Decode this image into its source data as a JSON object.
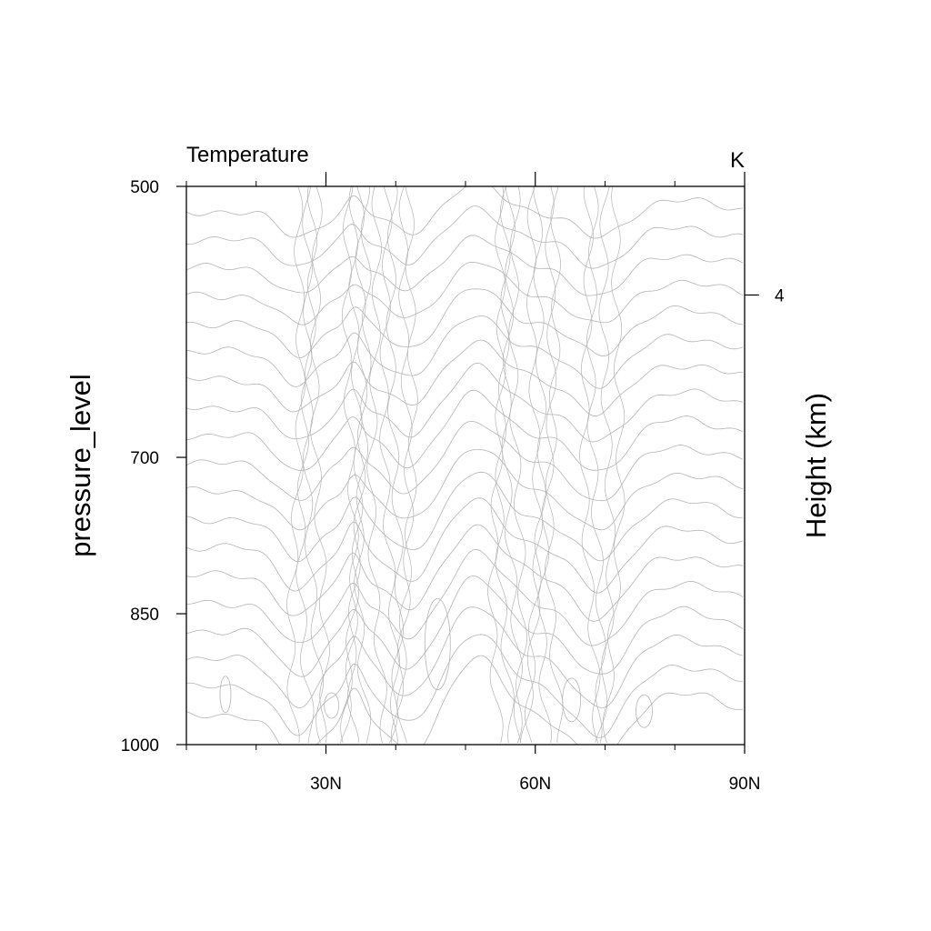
{
  "chart_data": {
    "type": "contour",
    "title": "Temperature",
    "units": "K",
    "xlabel": "",
    "ylabel": "pressure_level",
    "ylabel_right": "Height (km)",
    "x_ticks": [
      {
        "value": 30,
        "label": "30N"
      },
      {
        "value": 60,
        "label": "60N"
      },
      {
        "value": 90,
        "label": "90N"
      }
    ],
    "x_minor_ticks": [
      10,
      20,
      40,
      50,
      70,
      80
    ],
    "y_ticks": [
      {
        "value": 500,
        "label": "500"
      },
      {
        "value": 700,
        "label": "700"
      },
      {
        "value": 850,
        "label": "850"
      },
      {
        "value": 1000,
        "label": "1000"
      }
    ],
    "y_right_ticks": [
      {
        "value": 4,
        "label": "4"
      }
    ],
    "xlim": [
      10,
      90
    ],
    "ylim": [
      1000,
      500
    ],
    "y_scale": "log",
    "contour_color": "#b4b4b4"
  }
}
